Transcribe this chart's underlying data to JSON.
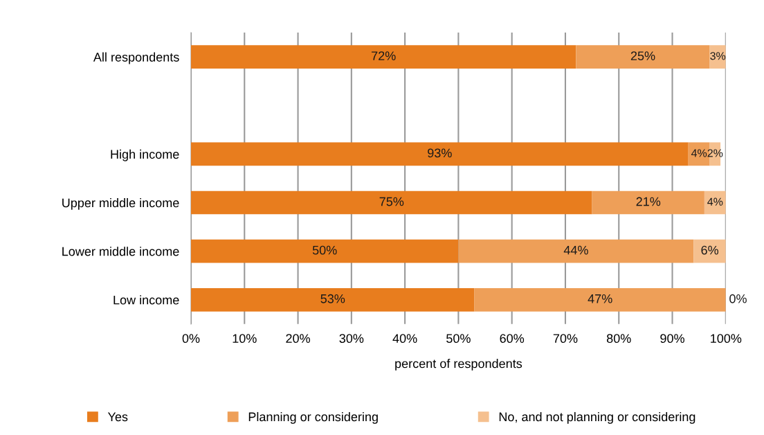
{
  "chart_data": {
    "type": "bar",
    "orientation": "horizontal",
    "stacked": true,
    "categories": [
      "All respondents",
      null,
      "High income",
      "Upper middle income",
      "Lower middle income",
      "Low income"
    ],
    "series": [
      {
        "name": "Yes",
        "color": "#e87d1e",
        "values": [
          72,
          null,
          93,
          75,
          50,
          53
        ],
        "value_labels": [
          "72%",
          null,
          "93%",
          "75%",
          "50%",
          "53%"
        ]
      },
      {
        "name": "Planning or considering",
        "color": "#ee9f58",
        "values": [
          25,
          null,
          4,
          21,
          44,
          47
        ],
        "value_labels": [
          "25%",
          null,
          "4%",
          "21%",
          "44%",
          "47%"
        ]
      },
      {
        "name": "No, and not planning or considering",
        "color": "#f5c08f",
        "values": [
          3,
          null,
          2,
          4,
          6,
          0
        ],
        "value_labels": [
          "3%",
          null,
          "2%",
          "4%",
          "6%",
          "0%"
        ]
      }
    ],
    "xlim": [
      0,
      100
    ],
    "xticks": [
      {
        "value": 0,
        "label": "0%"
      },
      {
        "value": 10,
        "label": "10%"
      },
      {
        "value": 20,
        "label": "20%"
      },
      {
        "value": 30,
        "label": "30%"
      },
      {
        "value": 40,
        "label": "40%"
      },
      {
        "value": 50,
        "label": "50%"
      },
      {
        "value": 60,
        "label": "60%"
      },
      {
        "value": 70,
        "label": "70%"
      },
      {
        "value": 80,
        "label": "80%"
      },
      {
        "value": 90,
        "label": "90%"
      },
      {
        "value": 100,
        "label": "100%"
      }
    ],
    "xlabel": "percent of respondents",
    "grid": "x",
    "legend": "bottom"
  }
}
